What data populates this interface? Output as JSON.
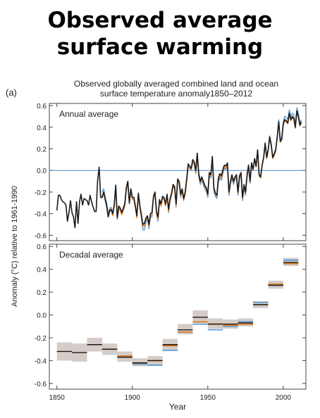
{
  "title_line1": "Observed average",
  "title_line2": "surface warming",
  "panel_label": "(a)",
  "chart_title_line1": "Observed globally averaged combined land and ocean",
  "chart_title_line2": "surface temperature anomaly1850–2012",
  "colors": {
    "black_series": "#1a1a1a",
    "orange_series": "#e07b22",
    "blue_series": "#5b9bd5",
    "zero_line": "#4a86c5",
    "uncertainty_band": "#d4ccc8"
  },
  "chart_data": [
    {
      "type": "line",
      "panel_label": "Annual average",
      "xlabel": "Year",
      "ylabel": "Anomaly (°C) relative to 1961-1990",
      "xlim": [
        1845,
        2015
      ],
      "ylim": [
        -0.65,
        0.62
      ],
      "yticks": [
        -0.6,
        -0.4,
        -0.2,
        0.0,
        0.2,
        0.4,
        0.6
      ],
      "xticks": [
        1850,
        1900,
        1950,
        2000
      ],
      "reference_line": 0.0,
      "x_start": 1850,
      "series": [
        {
          "color": "black",
          "start": 1850,
          "values": [
            -0.37,
            -0.23,
            -0.23,
            -0.27,
            -0.29,
            -0.3,
            -0.32,
            -0.47,
            -0.39,
            -0.28,
            -0.39,
            -0.43,
            -0.53,
            -0.29,
            -0.49,
            -0.29,
            -0.22,
            -0.32,
            -0.26,
            -0.27,
            -0.28,
            -0.32,
            -0.23,
            -0.29,
            -0.34,
            -0.38,
            -0.38,
            -0.09,
            0.03,
            -0.25,
            -0.25,
            -0.2,
            -0.27,
            -0.33,
            -0.43,
            -0.37,
            -0.36,
            -0.4,
            -0.32,
            -0.14,
            -0.44,
            -0.33,
            -0.35,
            -0.39,
            -0.35,
            -0.31,
            -0.16,
            -0.1,
            -0.3,
            -0.17,
            -0.25,
            -0.25,
            -0.33,
            -0.42,
            -0.21,
            -0.33,
            -0.41,
            -0.5,
            -0.49,
            -0.44,
            -0.42,
            -0.5,
            -0.4,
            -0.39,
            -0.24,
            -0.2,
            -0.38,
            -0.43,
            -0.27,
            -0.31,
            -0.24,
            -0.25,
            -0.31,
            -0.22,
            -0.36,
            -0.26,
            -0.21,
            -0.13,
            -0.15,
            -0.31,
            -0.08,
            -0.1,
            -0.22,
            -0.17,
            -0.26,
            -0.2,
            -0.08,
            0.06,
            0.04,
            0.02,
            0.1,
            0.08,
            0.0,
            0.16,
            -0.03,
            -0.1,
            -0.06,
            -0.1,
            -0.14,
            -0.16,
            -0.22,
            -0.02,
            -0.04,
            0.13,
            -0.16,
            -0.21,
            -0.23,
            -0.07,
            -0.03,
            -0.05,
            0.01,
            0.05,
            0.04,
            0.07,
            -0.2,
            -0.1,
            -0.04,
            -0.1,
            -0.06,
            -0.04,
            -0.2,
            -0.05,
            -0.02,
            -0.25,
            -0.13,
            -0.2,
            -0.04,
            0.05,
            -0.1,
            0.07,
            0.01,
            0.11,
            0.04,
            0.19,
            -0.04,
            -0.06,
            0.05,
            0.12,
            0.25,
            0.12,
            0.19,
            0.31,
            0.24,
            0.12,
            0.15,
            0.19,
            0.31,
            0.45,
            0.27,
            0.29,
            0.43,
            0.47,
            0.46,
            0.44,
            0.53,
            0.47,
            0.5,
            0.48,
            0.4,
            0.55,
            0.5,
            0.42,
            0.45
          ]
        },
        {
          "color": "orange",
          "start": 1880,
          "values": [
            -0.24,
            -0.2,
            -0.27,
            -0.34,
            -0.43,
            -0.38,
            -0.37,
            -0.42,
            -0.34,
            -0.16,
            -0.45,
            -0.35,
            -0.37,
            -0.41,
            -0.37,
            -0.33,
            -0.18,
            -0.12,
            -0.31,
            -0.19,
            -0.27,
            -0.27,
            -0.35,
            -0.44,
            -0.23,
            -0.35,
            -0.43,
            -0.52,
            -0.51,
            -0.46,
            -0.44,
            -0.52,
            -0.42,
            -0.41,
            -0.26,
            -0.22,
            -0.4,
            -0.45,
            -0.29,
            -0.33,
            -0.26,
            -0.27,
            -0.33,
            -0.24,
            -0.38,
            -0.28,
            -0.23,
            -0.15,
            -0.17,
            -0.33,
            -0.1,
            -0.12,
            -0.24,
            -0.19,
            -0.27,
            -0.22,
            -0.1,
            0.04,
            0.02,
            0.01,
            0.08,
            0.06,
            -0.02,
            0.14,
            -0.04,
            -0.11,
            -0.08,
            -0.11,
            -0.15,
            -0.17,
            -0.23,
            -0.03,
            -0.05,
            0.11,
            -0.17,
            -0.22,
            -0.24,
            -0.09,
            -0.05,
            -0.07,
            -0.01,
            0.03,
            0.02,
            0.05,
            -0.21,
            -0.11,
            -0.05,
            -0.11,
            -0.07,
            -0.05,
            -0.21,
            -0.06,
            -0.03,
            -0.26,
            -0.14,
            -0.21,
            -0.06,
            0.04,
            -0.11,
            0.06,
            0.0,
            0.1,
            0.03,
            0.18,
            -0.05,
            -0.07,
            0.04,
            0.11,
            0.24,
            0.11,
            0.18,
            0.3,
            0.23,
            0.11,
            0.14,
            0.18,
            0.3,
            0.44,
            0.26,
            0.28,
            0.42,
            0.46,
            0.45,
            0.43,
            0.52,
            0.46,
            0.49,
            0.47,
            0.39,
            0.54,
            0.49,
            0.41,
            0.44
          ]
        },
        {
          "color": "blue",
          "start": 1880,
          "values": [
            -0.2,
            -0.17,
            -0.24,
            -0.3,
            -0.4,
            -0.35,
            -0.34,
            -0.4,
            -0.31,
            -0.13,
            -0.43,
            -0.33,
            -0.35,
            -0.39,
            -0.35,
            -0.31,
            -0.16,
            -0.1,
            -0.29,
            -0.17,
            -0.25,
            -0.25,
            -0.33,
            -0.43,
            -0.22,
            -0.35,
            -0.44,
            -0.55,
            -0.55,
            -0.48,
            -0.45,
            -0.54,
            -0.43,
            -0.43,
            -0.25,
            -0.21,
            -0.41,
            -0.47,
            -0.28,
            -0.32,
            -0.26,
            -0.26,
            -0.33,
            -0.23,
            -0.39,
            -0.28,
            -0.22,
            -0.13,
            -0.16,
            -0.34,
            -0.1,
            -0.12,
            -0.25,
            -0.19,
            -0.28,
            -0.22,
            -0.1,
            0.03,
            0.02,
            0.0,
            0.07,
            0.06,
            -0.03,
            0.12,
            -0.06,
            -0.13,
            -0.09,
            -0.13,
            -0.17,
            -0.19,
            -0.25,
            -0.05,
            -0.07,
            0.1,
            -0.19,
            -0.24,
            -0.26,
            -0.11,
            -0.07,
            -0.09,
            -0.03,
            0.02,
            0.01,
            0.04,
            -0.23,
            -0.13,
            -0.07,
            -0.13,
            -0.09,
            -0.07,
            -0.23,
            -0.08,
            -0.04,
            -0.28,
            -0.16,
            -0.23,
            -0.07,
            0.03,
            -0.12,
            0.05,
            0.0,
            0.1,
            0.03,
            0.19,
            -0.04,
            -0.06,
            0.05,
            0.12,
            0.26,
            0.13,
            0.2,
            0.32,
            0.25,
            0.13,
            0.16,
            0.2,
            0.32,
            0.47,
            0.29,
            0.31,
            0.45,
            0.5,
            0.49,
            0.47,
            0.56,
            0.5,
            0.53,
            0.51,
            0.43,
            0.58,
            0.53,
            0.44,
            0.47
          ]
        }
      ]
    },
    {
      "type": "line",
      "panel_label": "Decadal average",
      "xlabel": "Year",
      "ylabel": "Anomaly (°C) relative to 1961-1990",
      "xlim": [
        1845,
        2015
      ],
      "ylim": [
        -0.65,
        0.62
      ],
      "yticks": [
        -0.6,
        -0.4,
        -0.2,
        0.0,
        0.2,
        0.4,
        0.6
      ],
      "xticks": [
        1850,
        1900,
        1950,
        2000
      ],
      "decades": [
        1850,
        1860,
        1870,
        1880,
        1890,
        1900,
        1910,
        1920,
        1930,
        1940,
        1950,
        1960,
        1970,
        1980,
        1990,
        2000
      ],
      "black": [
        -0.32,
        -0.33,
        -0.26,
        -0.3,
        -0.37,
        -0.42,
        -0.4,
        -0.26,
        -0.13,
        -0.02,
        -0.08,
        -0.08,
        -0.07,
        0.09,
        0.26,
        0.46
      ],
      "orange": [
        null,
        null,
        null,
        -0.3,
        -0.36,
        -0.42,
        -0.4,
        -0.27,
        -0.15,
        -0.06,
        -0.08,
        -0.09,
        -0.08,
        0.09,
        0.27,
        0.45
      ],
      "blue": [
        null,
        null,
        null,
        -0.3,
        -0.37,
        -0.43,
        -0.44,
        -0.31,
        -0.15,
        -0.08,
        -0.13,
        -0.1,
        -0.06,
        0.11,
        0.26,
        0.48
      ],
      "uncertainty_low": [
        -0.4,
        -0.41,
        -0.32,
        -0.35,
        -0.41,
        -0.45,
        -0.44,
        -0.31,
        -0.17,
        -0.07,
        -0.12,
        -0.12,
        -0.1,
        0.06,
        0.23,
        0.43
      ],
      "uncertainty_high": [
        -0.24,
        -0.25,
        -0.2,
        -0.25,
        -0.32,
        -0.38,
        -0.36,
        -0.21,
        -0.08,
        0.04,
        -0.03,
        -0.04,
        -0.03,
        0.12,
        0.3,
        0.5
      ]
    }
  ]
}
